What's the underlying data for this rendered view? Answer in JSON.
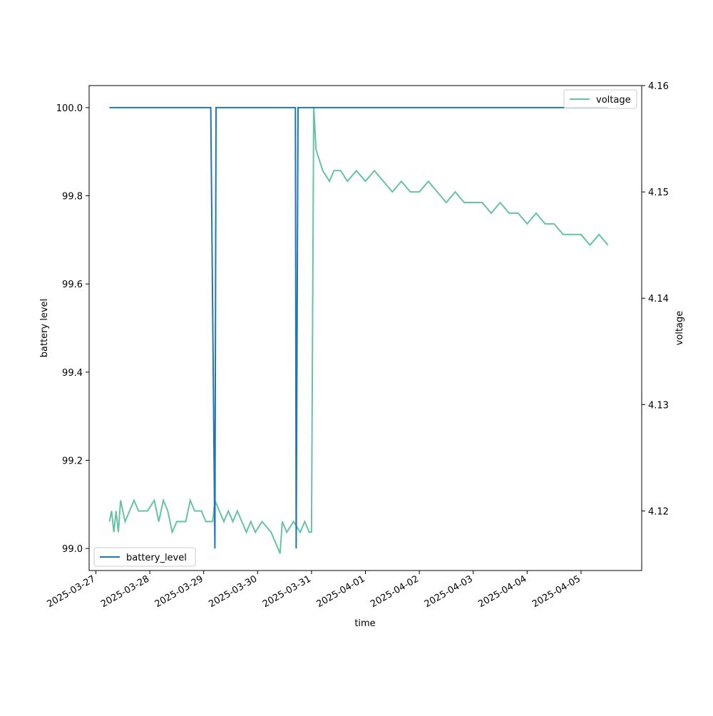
{
  "chart_data": {
    "type": "line",
    "title": "",
    "xlabel": "time",
    "ylabel_left": "battery level",
    "ylabel_right": "voltage",
    "x_range": [
      "2025-03-26T21:00",
      "2025-04-06T03:00"
    ],
    "ylim_left": [
      98.95,
      100.05
    ],
    "ylim_right": [
      4.1144,
      4.16
    ],
    "x_ticks": [
      "2025-03-27",
      "2025-03-28",
      "2025-03-29",
      "2025-03-30",
      "2025-03-31",
      "2025-04-01",
      "2025-04-02",
      "2025-04-03",
      "2025-04-04",
      "2025-04-05"
    ],
    "y_ticks_left": [
      "99.0",
      "99.2",
      "99.4",
      "99.6",
      "99.8",
      "100.0"
    ],
    "y_ticks_right": [
      "4.12",
      "4.13",
      "4.14",
      "4.15",
      "4.16"
    ],
    "grid": false,
    "series": [
      {
        "name": "battery_level",
        "axis": "left",
        "color": "#1f77b4",
        "legend_position": "lower-left",
        "points": [
          [
            "2025-03-27T06:00",
            100.0
          ],
          [
            "2025-03-29T03:10",
            100.0
          ],
          [
            "2025-03-29T05:00",
            99.0
          ],
          [
            "2025-03-29T05:30",
            100.0
          ],
          [
            "2025-03-30T16:50",
            100.0
          ],
          [
            "2025-03-30T17:10",
            99.0
          ],
          [
            "2025-03-30T18:00",
            100.0
          ],
          [
            "2025-04-05T12:00",
            100.0
          ]
        ]
      },
      {
        "name": "voltage",
        "axis": "right",
        "color": "#66c2a5",
        "legend_position": "upper-right",
        "points": [
          [
            "2025-03-27T06:00",
            4.119
          ],
          [
            "2025-03-27T07:00",
            4.12
          ],
          [
            "2025-03-27T08:00",
            4.118
          ],
          [
            "2025-03-27T09:00",
            4.12
          ],
          [
            "2025-03-27T10:00",
            4.118
          ],
          [
            "2025-03-27T11:00",
            4.121
          ],
          [
            "2025-03-27T13:00",
            4.119
          ],
          [
            "2025-03-27T15:00",
            4.12
          ],
          [
            "2025-03-27T17:00",
            4.121
          ],
          [
            "2025-03-27T19:00",
            4.12
          ],
          [
            "2025-03-27T23:00",
            4.12
          ],
          [
            "2025-03-28T02:00",
            4.121
          ],
          [
            "2025-03-28T04:00",
            4.119
          ],
          [
            "2025-03-28T06:00",
            4.121
          ],
          [
            "2025-03-28T08:00",
            4.12
          ],
          [
            "2025-03-28T10:00",
            4.118
          ],
          [
            "2025-03-28T12:00",
            4.119
          ],
          [
            "2025-03-28T16:00",
            4.119
          ],
          [
            "2025-03-28T18:00",
            4.121
          ],
          [
            "2025-03-28T20:00",
            4.12
          ],
          [
            "2025-03-28T23:00",
            4.12
          ],
          [
            "2025-03-29T01:00",
            4.119
          ],
          [
            "2025-03-29T04:00",
            4.119
          ],
          [
            "2025-03-29T05:00",
            4.121
          ],
          [
            "2025-03-29T07:00",
            4.12
          ],
          [
            "2025-03-29T09:00",
            4.119
          ],
          [
            "2025-03-29T11:00",
            4.12
          ],
          [
            "2025-03-29T13:00",
            4.119
          ],
          [
            "2025-03-29T15:00",
            4.12
          ],
          [
            "2025-03-29T17:00",
            4.119
          ],
          [
            "2025-03-29T19:00",
            4.118
          ],
          [
            "2025-03-29T21:00",
            4.119
          ],
          [
            "2025-03-29T23:00",
            4.118
          ],
          [
            "2025-03-30T02:00",
            4.119
          ],
          [
            "2025-03-30T06:00",
            4.118
          ],
          [
            "2025-03-30T10:00",
            4.116
          ],
          [
            "2025-03-30T11:00",
            4.119
          ],
          [
            "2025-03-30T13:00",
            4.118
          ],
          [
            "2025-03-30T16:00",
            4.119
          ],
          [
            "2025-03-30T19:00",
            4.118
          ],
          [
            "2025-03-30T21:00",
            4.119
          ],
          [
            "2025-03-30T23:00",
            4.118
          ],
          [
            "2025-03-31T00:00",
            4.118
          ],
          [
            "2025-03-31T01:00",
            4.158
          ],
          [
            "2025-03-31T02:00",
            4.154
          ],
          [
            "2025-03-31T03:30",
            4.153
          ],
          [
            "2025-03-31T05:00",
            4.152
          ],
          [
            "2025-03-31T08:00",
            4.151
          ],
          [
            "2025-03-31T10:00",
            4.152
          ],
          [
            "2025-03-31T13:00",
            4.152
          ],
          [
            "2025-03-31T16:00",
            4.151
          ],
          [
            "2025-03-31T20:00",
            4.152
          ],
          [
            "2025-04-01T00:00",
            4.151
          ],
          [
            "2025-04-01T04:00",
            4.152
          ],
          [
            "2025-04-01T08:00",
            4.151
          ],
          [
            "2025-04-01T12:00",
            4.15
          ],
          [
            "2025-04-01T16:00",
            4.151
          ],
          [
            "2025-04-01T20:00",
            4.15
          ],
          [
            "2025-04-02T00:00",
            4.15
          ],
          [
            "2025-04-02T04:00",
            4.151
          ],
          [
            "2025-04-02T08:00",
            4.15
          ],
          [
            "2025-04-02T12:00",
            4.149
          ],
          [
            "2025-04-02T16:00",
            4.15
          ],
          [
            "2025-04-02T20:00",
            4.149
          ],
          [
            "2025-04-03T00:00",
            4.149
          ],
          [
            "2025-04-03T04:00",
            4.149
          ],
          [
            "2025-04-03T08:00",
            4.148
          ],
          [
            "2025-04-03T12:00",
            4.149
          ],
          [
            "2025-04-03T16:00",
            4.148
          ],
          [
            "2025-04-03T20:00",
            4.148
          ],
          [
            "2025-04-04T00:00",
            4.147
          ],
          [
            "2025-04-04T04:00",
            4.148
          ],
          [
            "2025-04-04T08:00",
            4.147
          ],
          [
            "2025-04-04T12:00",
            4.147
          ],
          [
            "2025-04-04T16:00",
            4.146
          ],
          [
            "2025-04-04T20:00",
            4.146
          ],
          [
            "2025-04-05T00:00",
            4.146
          ],
          [
            "2025-04-05T04:00",
            4.145
          ],
          [
            "2025-04-05T08:00",
            4.146
          ],
          [
            "2025-04-05T12:00",
            4.145
          ]
        ]
      }
    ]
  }
}
